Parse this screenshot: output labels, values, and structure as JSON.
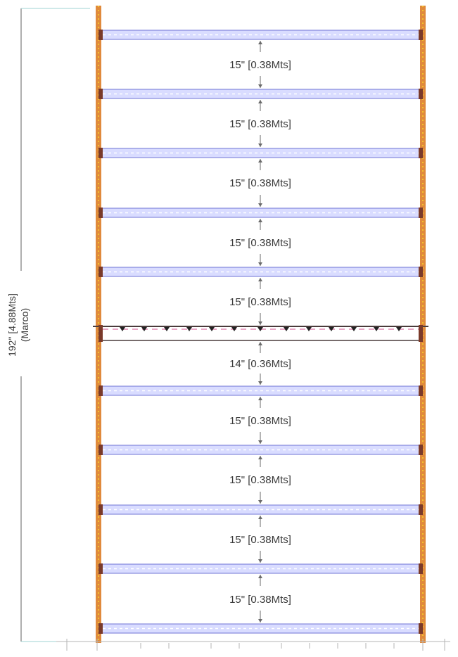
{
  "rack": {
    "total_height_label": "192\" [4.88Mts]",
    "total_height_note": "(Marco)",
    "spacing_labels": [
      "15\" [0.38Mts]",
      "15\" [0.38Mts]",
      "15\" [0.38Mts]",
      "15\" [0.38Mts]",
      "15\" [0.38Mts]",
      "14\" [0.36Mts]",
      "15\" [0.38Mts]",
      "15\" [0.38Mts]",
      "15\" [0.38Mts]",
      "15\" [0.38Mts]"
    ],
    "colors": {
      "upright": "#e08a3c",
      "upright_dots": "#f2c12e",
      "beam_fill": "#d9dcff",
      "beam_stroke": "#6f73d6",
      "deck_stroke": "#4a3b3b",
      "deck_pink": "#e9a7c6",
      "dimension": "#6a6a6a",
      "side_dimension": "#8fc9c9"
    }
  }
}
